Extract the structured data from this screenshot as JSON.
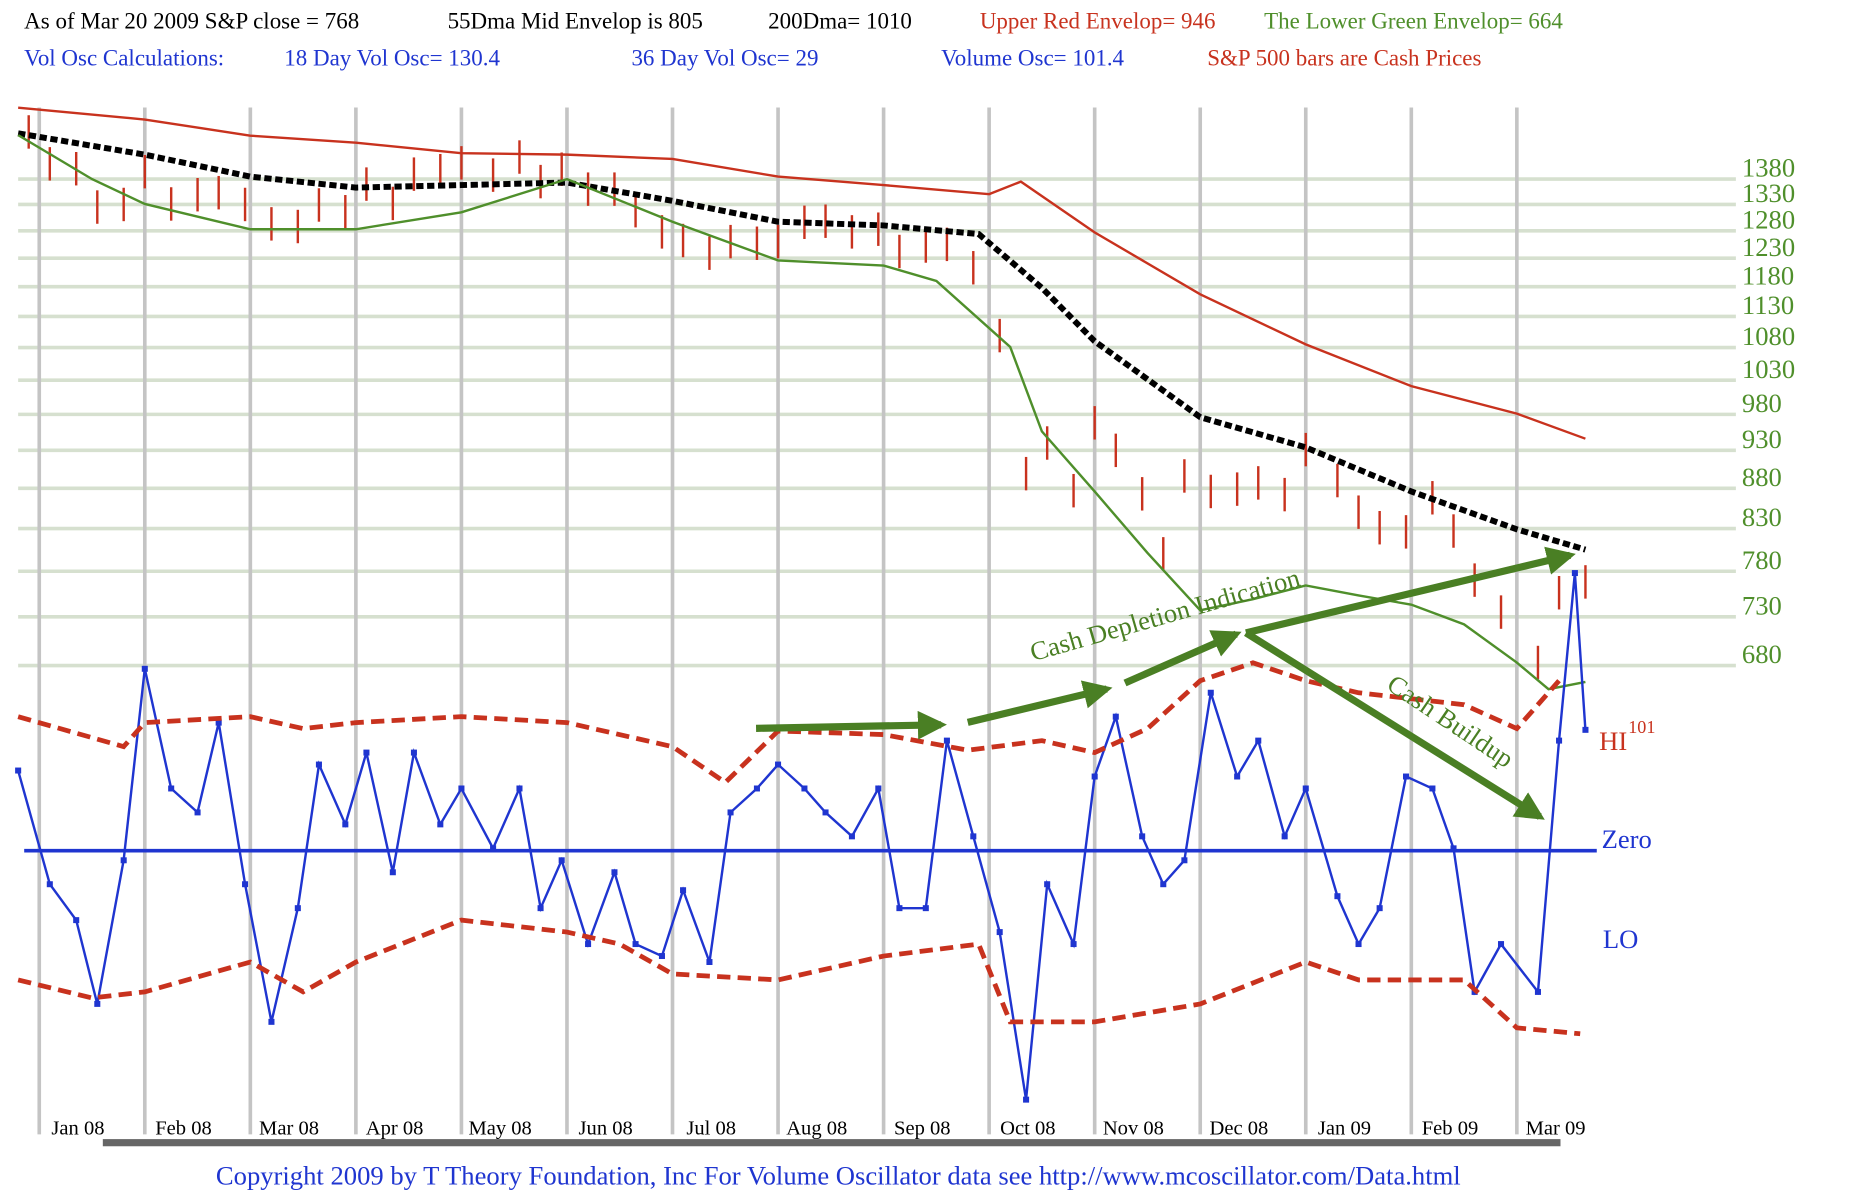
{
  "chart_data": {
    "type": "line",
    "log": true,
    "header": [
      [
        "As of Mar 20  2009  S&P close = 768",
        "55Dma Mid Envelop is  805",
        "200Dma=  1010",
        "Upper Red Envelop= 946",
        "The Lower Green Envelop=  664"
      ],
      [
        "Vol Osc Calculations:",
        "18 Day Vol Osc=  130.4",
        "36 Day Vol Osc=  29",
        "Volume Osc=  101.4",
        "S&P 500 bars are Cash Prices"
      ]
    ],
    "annotations": [
      "Cash  Depletion  Indication",
      "Cash Buildup",
      "HI",
      "101",
      "Zero",
      "LO"
    ],
    "footer": "Copyright 2009 by T Theory Foundation, Inc  For Volume Oscillator data see http://www.mcoscillator.com/Data.html",
    "xlim": [
      -0.2,
      14.7
    ],
    "xticks": [
      {
        "value": 0,
        "label": "Jan 08"
      },
      {
        "value": 1,
        "label": "Feb 08"
      },
      {
        "value": 2,
        "label": "Mar 08"
      },
      {
        "value": 3,
        "label": "Apr 08"
      },
      {
        "value": 4,
        "label": "May 08"
      },
      {
        "value": 5,
        "label": "Jun 08"
      },
      {
        "value": 6,
        "label": "Jul 08"
      },
      {
        "value": 7,
        "label": "Aug 08"
      },
      {
        "value": 8,
        "label": "Sep 08"
      },
      {
        "value": 9,
        "label": "Oct 08"
      },
      {
        "value": 10,
        "label": "Nov 08"
      },
      {
        "value": 11,
        "label": "Dec 08"
      },
      {
        "value": 12,
        "label": "Jan 09"
      },
      {
        "value": 13,
        "label": "Feb 09"
      },
      {
        "value": 14,
        "label": "Mar 09"
      }
    ],
    "ylim": [
      348,
      1583
    ],
    "yticks": [
      680,
      730,
      780,
      830,
      880,
      930,
      980,
      1030,
      1080,
      1130,
      1180,
      1230,
      1280,
      1330,
      1380
    ],
    "y2lim": [
      -230,
      640
    ],
    "zero": 0,
    "series": [
      {
        "color": "#c8321e",
        "style": "bars",
        "x": [
          -0.1,
          0.1,
          0.35,
          0.55,
          0.8,
          1.0,
          1.25,
          1.5,
          1.7,
          1.95,
          2.2,
          2.45,
          2.65,
          2.9,
          3.1,
          3.35,
          3.55,
          3.8,
          4.0,
          4.3,
          4.55,
          4.75,
          4.95,
          5.2,
          5.45,
          5.65,
          5.9,
          6.1,
          6.35,
          6.55,
          6.8,
          7.0,
          7.25,
          7.45,
          7.7,
          7.95,
          8.15,
          8.4,
          8.6,
          8.85,
          9.1,
          9.35,
          9.55,
          9.8,
          10.0,
          10.2,
          10.45,
          10.65,
          10.85,
          11.1,
          11.35,
          11.55,
          11.8,
          12.0,
          12.3,
          12.5,
          12.7,
          12.95,
          13.2,
          13.4,
          13.6,
          13.85,
          14.2,
          14.4,
          14.65
        ],
        "values": [
          1478,
          1411,
          1401,
          1325,
          1330,
          1395,
          1331,
          1349,
          1353,
          1330,
          1293,
          1288,
          1329,
          1316,
          1370,
          1332,
          1390,
          1397,
          1413,
          1388,
          1425,
          1375,
          1400,
          1360,
          1360,
          1318,
          1278,
          1262,
          1239,
          1260,
          1257,
          1260,
          1296,
          1298,
          1278,
          1283,
          1242,
          1252,
          1255,
          1213,
          1099,
          899,
          940,
          877,
          968,
          930,
          873,
          800,
          896,
          876,
          879,
          887,
          872,
          931,
          890,
          850,
          831,
          826,
          868,
          827,
          770,
          735,
          683,
          756,
          768
        ]
      },
      {
        "color": "#c8321e",
        "style": "line",
        "x": [
          -0.2,
          1,
          2,
          3,
          4,
          5,
          6,
          7,
          8,
          9,
          9.3,
          10,
          11,
          12,
          13,
          14,
          14.65
        ],
        "values": [
          1531,
          1505,
          1470,
          1455,
          1433,
          1430,
          1421,
          1385,
          1368,
          1350,
          1375,
          1277,
          1167,
          1085,
          1021,
          981,
          946
        ]
      },
      {
        "color": "#000000",
        "style": "dashed",
        "x": [
          -0.2,
          1,
          2,
          3,
          4,
          5,
          6,
          7,
          8,
          8.9,
          9.5,
          10,
          11,
          12,
          13,
          14,
          14.65
        ],
        "values": [
          1475,
          1430,
          1385,
          1363,
          1368,
          1373,
          1337,
          1297,
          1290,
          1274,
          1178,
          1090,
          976,
          934,
          876,
          829,
          805
        ]
      },
      {
        "color": "#4f8f2b",
        "style": "line",
        "x": [
          -0.2,
          0.5,
          1,
          2,
          3,
          4,
          5,
          6,
          7,
          8,
          8.5,
          9.2,
          9.5,
          10,
          10.5,
          11,
          11.5,
          12,
          12.5,
          13,
          13.5,
          14,
          14.3,
          14.65
        ],
        "values": [
          1471,
          1380,
          1331,
          1283,
          1283,
          1315,
          1380,
          1297,
          1226,
          1217,
          1190,
          1081,
          956,
          876,
          801,
          737,
          749,
          764,
          753,
          743,
          722,
          683,
          657,
          664
        ]
      },
      {
        "color": "#1f35d0",
        "style": "markers",
        "axis": "y2",
        "x": [
          -0.2,
          0.1,
          0.35,
          0.55,
          0.8,
          1.0,
          1.25,
          1.5,
          1.7,
          1.95,
          2.2,
          2.45,
          2.65,
          2.9,
          3.1,
          3.35,
          3.55,
          3.8,
          4.0,
          4.3,
          4.55,
          4.75,
          4.95,
          5.2,
          5.45,
          5.65,
          5.9,
          6.1,
          6.35,
          6.55,
          6.8,
          7.0,
          7.25,
          7.45,
          7.7,
          7.95,
          8.15,
          8.4,
          8.6,
          8.85,
          9.1,
          9.35,
          9.55,
          9.8,
          10.0,
          10.2,
          10.45,
          10.65,
          10.85,
          11.1,
          11.35,
          11.55,
          11.8,
          12.0,
          12.3,
          12.5,
          12.7,
          12.95,
          13.2,
          13.4,
          13.6,
          13.85,
          14.2,
          14.4,
          14.55,
          14.65
        ],
        "values": [
          67,
          -28,
          -58,
          -128,
          -8,
          152,
          52,
          32,
          107,
          -28,
          -143,
          -48,
          72,
          22,
          82,
          -18,
          82,
          22,
          52,
          2,
          52,
          -48,
          -8,
          -78,
          -18,
          -78,
          -88,
          -33,
          -93,
          32,
          52,
          72,
          52,
          32,
          12,
          52,
          -48,
          -48,
          92,
          12,
          -68,
          -208,
          -28,
          -78,
          62,
          112,
          12,
          -28,
          -8,
          132,
          62,
          92,
          12,
          52,
          -38,
          -78,
          -48,
          62,
          52,
          2,
          -118,
          -78,
          -118,
          92,
          232,
          101
        ]
      },
      {
        "color": "#c8321e",
        "style": "bold-dashed",
        "axis": "y2",
        "x": [
          -0.2,
          0.8,
          1,
          2,
          2.5,
          3,
          4,
          5,
          6,
          6.5,
          7,
          8,
          8.8,
          9.5,
          10,
          10.5,
          11,
          11.5,
          12,
          12.5,
          13,
          13.5,
          14,
          14.4
        ],
        "values": [
          112,
          87,
          107,
          112,
          102,
          107,
          112,
          107,
          87,
          57,
          100,
          97,
          84,
          92,
          82,
          102,
          142,
          157,
          142,
          132,
          127,
          122,
          102,
          142
        ]
      },
      {
        "color": "#c8321e",
        "style": "bold-dashed",
        "axis": "y2",
        "x": [
          -0.2,
          0.5,
          1,
          2,
          2.5,
          3,
          4,
          5,
          5.5,
          6,
          7,
          8,
          8.9,
          9.2,
          10,
          11,
          12,
          12.5,
          13,
          13.5,
          14,
          14.6
        ],
        "values": [
          -108,
          -123,
          -118,
          -93,
          -118,
          -93,
          -58,
          -68,
          -78,
          -103,
          -108,
          -88,
          -78,
          -143,
          -143,
          -128,
          -93,
          -108,
          -108,
          -108,
          -148,
          -153
        ]
      }
    ]
  }
}
